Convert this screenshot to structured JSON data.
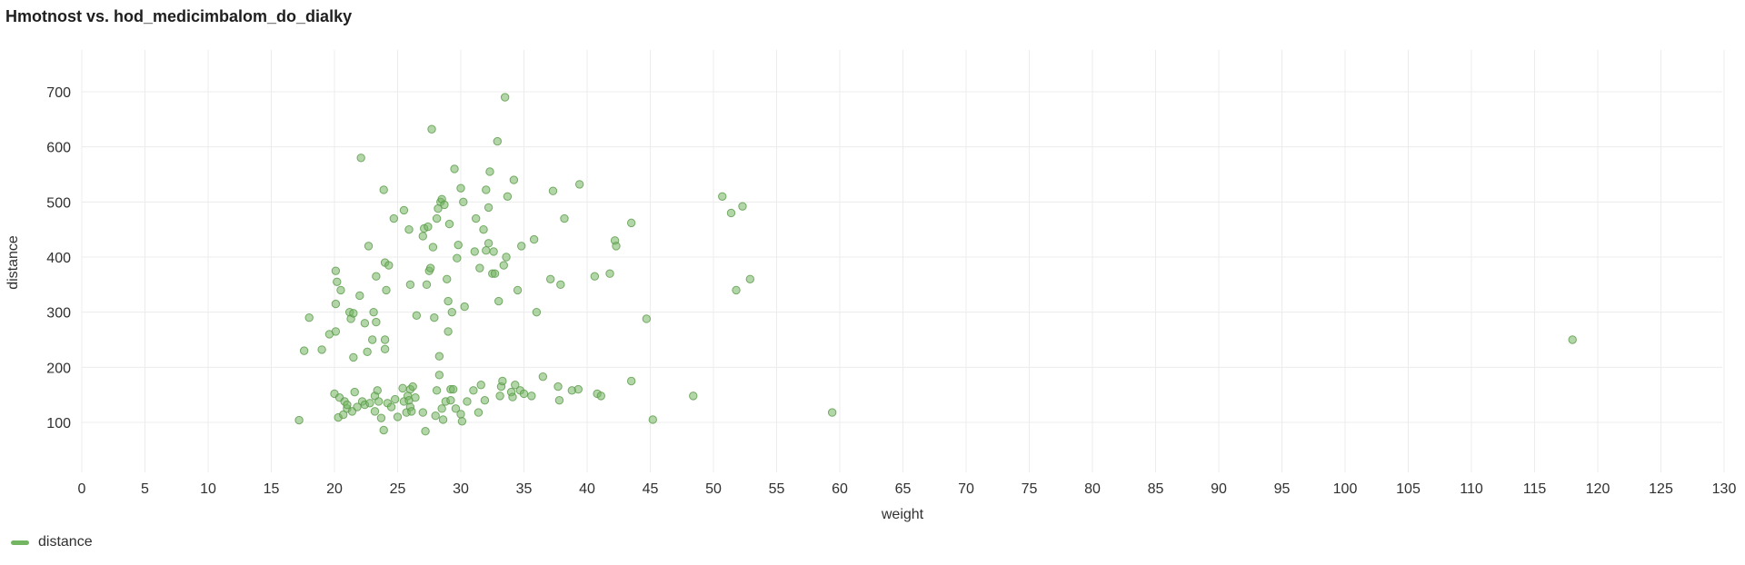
{
  "panel": {
    "title": "Hmotnost vs. hod_medicimbalom_do_dialky"
  },
  "colors": {
    "series": "#73b561",
    "series_stroke": "#5a9a48",
    "grid": "#ececec"
  },
  "chart_data": {
    "type": "scatter",
    "title": "Hmotnost vs. hod_medicimbalom_do_dialky",
    "xlabel": "weight",
    "ylabel": "distance",
    "xlim": [
      0,
      130
    ],
    "ylim": [
      0,
      760
    ],
    "x_ticks": [
      0,
      5,
      10,
      15,
      20,
      25,
      30,
      35,
      40,
      45,
      50,
      55,
      60,
      65,
      70,
      75,
      80,
      85,
      90,
      95,
      100,
      105,
      110,
      115,
      120,
      125,
      130
    ],
    "y_ticks": [
      100,
      200,
      300,
      400,
      500,
      600,
      700
    ],
    "grid": true,
    "legend_position": "bottom-left",
    "series": [
      {
        "name": "distance",
        "points": [
          [
            17.2,
            104
          ],
          [
            17.6,
            230
          ],
          [
            18.0,
            290
          ],
          [
            19.0,
            232
          ],
          [
            19.6,
            260
          ],
          [
            20.0,
            152
          ],
          [
            20.1,
            265
          ],
          [
            20.1,
            315
          ],
          [
            20.1,
            375
          ],
          [
            20.2,
            355
          ],
          [
            20.3,
            109
          ],
          [
            20.4,
            145
          ],
          [
            20.5,
            340
          ],
          [
            20.7,
            114
          ],
          [
            20.8,
            138
          ],
          [
            21.0,
            125
          ],
          [
            21.0,
            132
          ],
          [
            21.2,
            300
          ],
          [
            21.3,
            288
          ],
          [
            21.4,
            120
          ],
          [
            21.5,
            218
          ],
          [
            21.5,
            298
          ],
          [
            21.6,
            155
          ],
          [
            21.8,
            128
          ],
          [
            22.0,
            330
          ],
          [
            22.1,
            580
          ],
          [
            22.2,
            138
          ],
          [
            22.4,
            280
          ],
          [
            22.4,
            132
          ],
          [
            22.6,
            228
          ],
          [
            22.7,
            420
          ],
          [
            22.8,
            135
          ],
          [
            23.0,
            250
          ],
          [
            23.1,
            300
          ],
          [
            23.2,
            148
          ],
          [
            23.2,
            120
          ],
          [
            23.3,
            365
          ],
          [
            23.3,
            282
          ],
          [
            23.4,
            158
          ],
          [
            23.5,
            138
          ],
          [
            23.7,
            108
          ],
          [
            23.9,
            86
          ],
          [
            23.9,
            522
          ],
          [
            24.0,
            233
          ],
          [
            24.0,
            390
          ],
          [
            24.0,
            250
          ],
          [
            24.1,
            340
          ],
          [
            24.2,
            135
          ],
          [
            24.3,
            385
          ],
          [
            24.5,
            128
          ],
          [
            24.7,
            470
          ],
          [
            24.8,
            142
          ],
          [
            25.0,
            110
          ],
          [
            25.4,
            162
          ],
          [
            25.5,
            485
          ],
          [
            25.5,
            138
          ],
          [
            25.7,
            118
          ],
          [
            25.8,
            148
          ],
          [
            25.9,
            140
          ],
          [
            25.9,
            450
          ],
          [
            26.0,
            160
          ],
          [
            26.0,
            350
          ],
          [
            26.0,
            128
          ],
          [
            26.1,
            120
          ],
          [
            26.2,
            165
          ],
          [
            26.4,
            145
          ],
          [
            26.5,
            294
          ],
          [
            27.0,
            438
          ],
          [
            27.0,
            118
          ],
          [
            27.1,
            452
          ],
          [
            27.2,
            84
          ],
          [
            27.3,
            350
          ],
          [
            27.4,
            455
          ],
          [
            27.5,
            375
          ],
          [
            27.6,
            380
          ],
          [
            27.7,
            632
          ],
          [
            27.8,
            418
          ],
          [
            27.9,
            290
          ],
          [
            28.0,
            112
          ],
          [
            28.1,
            470
          ],
          [
            28.1,
            158
          ],
          [
            28.2,
            488
          ],
          [
            28.3,
            220
          ],
          [
            28.3,
            186
          ],
          [
            28.4,
            500
          ],
          [
            28.5,
            125
          ],
          [
            28.5,
            505
          ],
          [
            28.6,
            105
          ],
          [
            28.7,
            495
          ],
          [
            28.8,
            138
          ],
          [
            28.9,
            360
          ],
          [
            29.0,
            320
          ],
          [
            29.0,
            265
          ],
          [
            29.1,
            460
          ],
          [
            29.2,
            140
          ],
          [
            29.2,
            160
          ],
          [
            29.3,
            300
          ],
          [
            29.4,
            160
          ],
          [
            29.5,
            560
          ],
          [
            29.6,
            125
          ],
          [
            29.7,
            398
          ],
          [
            29.8,
            422
          ],
          [
            30.0,
            115
          ],
          [
            30.0,
            525
          ],
          [
            30.1,
            102
          ],
          [
            30.2,
            500
          ],
          [
            30.3,
            310
          ],
          [
            30.5,
            138
          ],
          [
            31.0,
            158
          ],
          [
            31.1,
            410
          ],
          [
            31.2,
            470
          ],
          [
            31.4,
            118
          ],
          [
            31.5,
            380
          ],
          [
            31.6,
            168
          ],
          [
            31.8,
            450
          ],
          [
            31.9,
            140
          ],
          [
            32.0,
            522
          ],
          [
            32.0,
            412
          ],
          [
            32.2,
            425
          ],
          [
            32.2,
            490
          ],
          [
            32.3,
            555
          ],
          [
            32.5,
            370
          ],
          [
            32.6,
            410
          ],
          [
            32.7,
            370
          ],
          [
            32.9,
            610
          ],
          [
            33.0,
            320
          ],
          [
            33.1,
            148
          ],
          [
            33.2,
            165
          ],
          [
            33.3,
            175
          ],
          [
            33.4,
            385
          ],
          [
            33.5,
            690
          ],
          [
            33.6,
            400
          ],
          [
            33.7,
            510
          ],
          [
            34.0,
            155
          ],
          [
            34.1,
            146
          ],
          [
            34.2,
            540
          ],
          [
            34.3,
            168
          ],
          [
            34.5,
            340
          ],
          [
            34.7,
            158
          ],
          [
            34.8,
            420
          ],
          [
            35.0,
            152
          ],
          [
            35.6,
            148
          ],
          [
            35.8,
            432
          ],
          [
            36.0,
            300
          ],
          [
            36.5,
            183
          ],
          [
            37.1,
            360
          ],
          [
            37.3,
            520
          ],
          [
            37.7,
            165
          ],
          [
            37.8,
            140
          ],
          [
            37.9,
            350
          ],
          [
            38.2,
            470
          ],
          [
            38.8,
            158
          ],
          [
            39.3,
            160
          ],
          [
            39.4,
            532
          ],
          [
            40.6,
            365
          ],
          [
            40.8,
            152
          ],
          [
            41.1,
            148
          ],
          [
            41.8,
            370
          ],
          [
            42.2,
            430
          ],
          [
            42.3,
            420
          ],
          [
            43.5,
            175
          ],
          [
            43.5,
            462
          ],
          [
            44.7,
            288
          ],
          [
            45.2,
            105
          ],
          [
            48.4,
            148
          ],
          [
            50.7,
            510
          ],
          [
            51.4,
            480
          ],
          [
            51.8,
            340
          ],
          [
            52.3,
            492
          ],
          [
            52.9,
            360
          ],
          [
            59.4,
            118
          ],
          [
            118.0,
            250
          ]
        ]
      }
    ]
  },
  "legend": {
    "label": "distance"
  }
}
